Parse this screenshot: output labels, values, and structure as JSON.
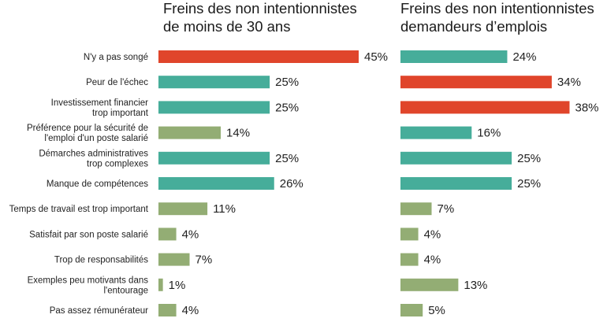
{
  "chart_data": {
    "type": "bar",
    "orientation": "horizontal",
    "categories": [
      "N'y a pas songé",
      "Peur de l'échec",
      "Investissement  financier trop important",
      "Préférence pour la sécurité de l'emploi d'un poste salarié",
      "Démarches administratives trop complexes",
      "Manque de compétences",
      "Temps de travail est trop important",
      "Satisfait par son poste salarié",
      "Trop de responsabilités",
      "Exemples peu motivants dans l'entourage",
      "Pas assez rémunérateur"
    ],
    "category_lines": [
      [
        "N'y a pas songé"
      ],
      [
        "Peur de l'échec"
      ],
      [
        "Investissement  financier",
        "trop important"
      ],
      [
        "Préférence pour la sécurité de",
        "l'emploi d'un poste salarié"
      ],
      [
        "Démarches administratives",
        "trop complexes"
      ],
      [
        "Manque de compétences"
      ],
      [
        "Temps de travail est trop important"
      ],
      [
        "Satisfait par son poste salarié"
      ],
      [
        "Trop de responsabilités"
      ],
      [
        "Exemples peu motivants dans",
        "l'entourage"
      ],
      [
        "Pas assez rémunérateur"
      ]
    ],
    "value_suffix": "%",
    "charts": [
      {
        "title_lines": [
          "Freins des non intentionnistes",
          "de moins de 30 ans"
        ],
        "values": [
          45,
          25,
          25,
          14,
          25,
          26,
          11,
          4,
          7,
          1,
          4
        ],
        "colors": [
          "#e0452b",
          "#46ad9a",
          "#46ad9a",
          "#93ad74",
          "#46ad9a",
          "#46ad9a",
          "#93ad74",
          "#93ad74",
          "#93ad74",
          "#93ad74",
          "#93ad74"
        ]
      },
      {
        "title_lines": [
          "Freins des non intentionnistes",
          "demandeurs d’emplois"
        ],
        "values": [
          24,
          34,
          38,
          16,
          25,
          25,
          7,
          4,
          4,
          13,
          5
        ],
        "colors": [
          "#46ad9a",
          "#e0452b",
          "#e0452b",
          "#46ad9a",
          "#46ad9a",
          "#46ad9a",
          "#93ad74",
          "#93ad74",
          "#93ad74",
          "#93ad74",
          "#93ad74"
        ]
      }
    ],
    "xlim": [
      0,
      45
    ],
    "grid": false,
    "legend": "none"
  }
}
